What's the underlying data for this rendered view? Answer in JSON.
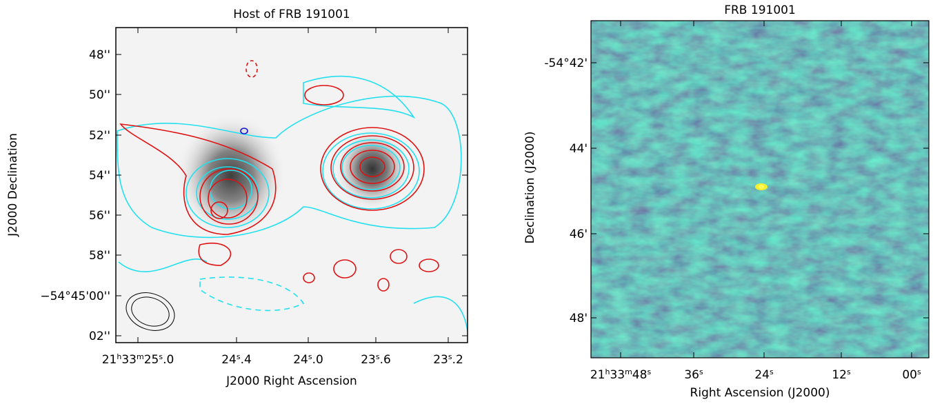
{
  "panels": [
    {
      "title": "Host of FRB 191001",
      "xlabel": "J2000 Right Ascension",
      "ylabel": "J2000 Declination",
      "xticks": [
        [
          "21",
          "h",
          "33",
          "m",
          "25",
          "s",
          ".0"
        ],
        [
          "24",
          "s",
          ".4"
        ],
        [
          "24",
          "s",
          ".0"
        ],
        [
          "23",
          "s",
          ".6"
        ],
        [
          "23",
          "s",
          ".2"
        ]
      ],
      "yticks": [
        [
          "48''"
        ],
        [
          "50''"
        ],
        [
          "52''"
        ],
        [
          "54''"
        ],
        [
          "56''"
        ],
        [
          "58''"
        ],
        [
          "−54°45'00''"
        ],
        [
          "02''"
        ]
      ]
    },
    {
      "title": "FRB 191001",
      "xlabel": "Right Ascension (J2000)",
      "ylabel": "Declination (J2000)",
      "xticks": [
        [
          "21",
          "h",
          "33",
          "m",
          "48",
          "s"
        ],
        [
          "36",
          "s"
        ],
        [
          "24",
          "s"
        ],
        [
          "12",
          "s"
        ],
        [
          "00",
          "s"
        ]
      ],
      "yticks": [
        [
          "-54°42'"
        ],
        [
          "44'"
        ],
        [
          "46'"
        ],
        [
          "48'"
        ]
      ]
    }
  ]
}
